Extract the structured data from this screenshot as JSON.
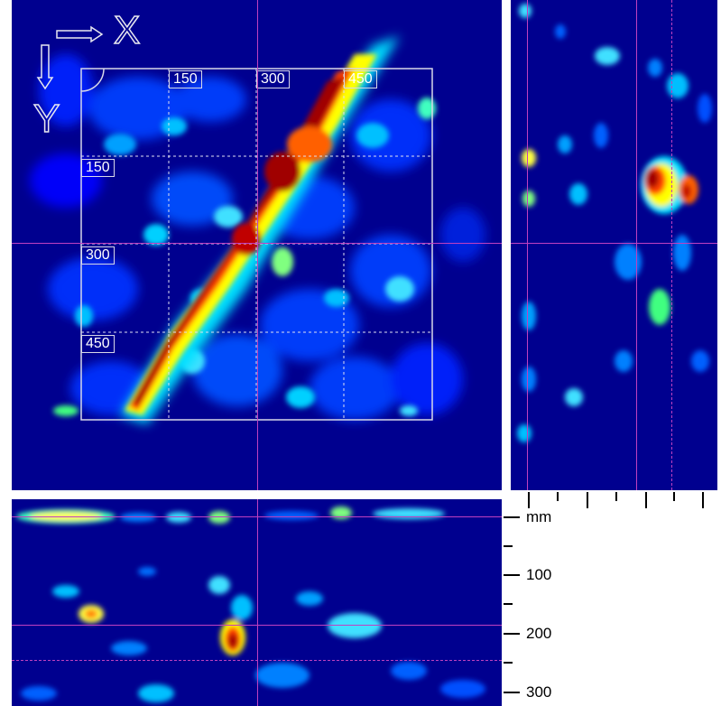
{
  "viewer": {
    "axis_x_label": "X",
    "axis_y_label": "Y",
    "grid_labels": {
      "x": [
        "150",
        "300",
        "450"
      ],
      "y": [
        "150",
        "300",
        "450"
      ]
    },
    "depth_scale": {
      "unit": "mm",
      "labels": [
        "100",
        "200",
        "300"
      ]
    },
    "colors": {
      "background": "#00008f",
      "crosshair": "#c040c0",
      "frame": "#d8d8e8",
      "colormap": [
        "#00008f",
        "#0000ff",
        "#0080ff",
        "#00e0ff",
        "#7fff7f",
        "#ffff00",
        "#ff8000",
        "#ff0000",
        "#8b0000"
      ]
    }
  }
}
